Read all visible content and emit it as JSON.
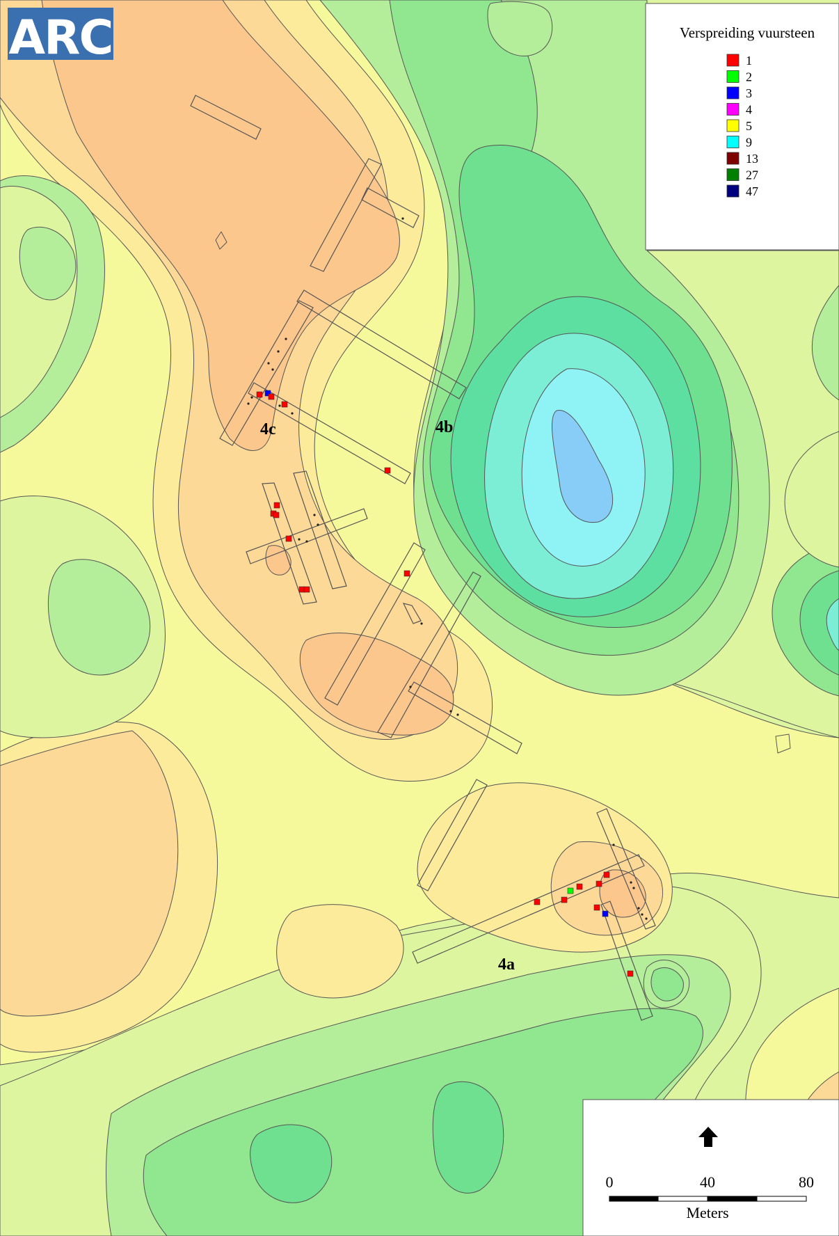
{
  "logo": {
    "text": "ARC",
    "color": "#3a6fb0"
  },
  "legend": {
    "title": "Verspreiding vuursteen",
    "items": [
      {
        "label": "1",
        "color": "#ff0000"
      },
      {
        "label": "2",
        "color": "#00ff00"
      },
      {
        "label": "3",
        "color": "#0000ff"
      },
      {
        "label": "4",
        "color": "#ff00ff"
      },
      {
        "label": "5",
        "color": "#ffff00"
      },
      {
        "label": "9",
        "color": "#00ffff"
      },
      {
        "label": "13",
        "color": "#7f0000"
      },
      {
        "label": "27",
        "color": "#007f00"
      },
      {
        "label": "47",
        "color": "#00007f"
      }
    ]
  },
  "sites": {
    "a": "4a",
    "b": "4b",
    "c": "4c"
  },
  "scale": {
    "tick0": "0",
    "tick1": "40",
    "tick2": "80",
    "unit": "Meters"
  },
  "north_arrow_icon": "north-arrow-icon",
  "contour_colors": {
    "orange": "#fbc78c",
    "peach": "#fdd997",
    "yellow": "#fbeb9a",
    "pale_yellow": "#f6f99b",
    "yellow_green": "#def5a0",
    "light_green": "#b5ee9a",
    "green1": "#91e690",
    "green2": "#6fe08f",
    "green3": "#5cdfa0",
    "aqua": "#7deed6",
    "cyan": "#8ff3f5",
    "light_blue": "#87cdf7"
  }
}
